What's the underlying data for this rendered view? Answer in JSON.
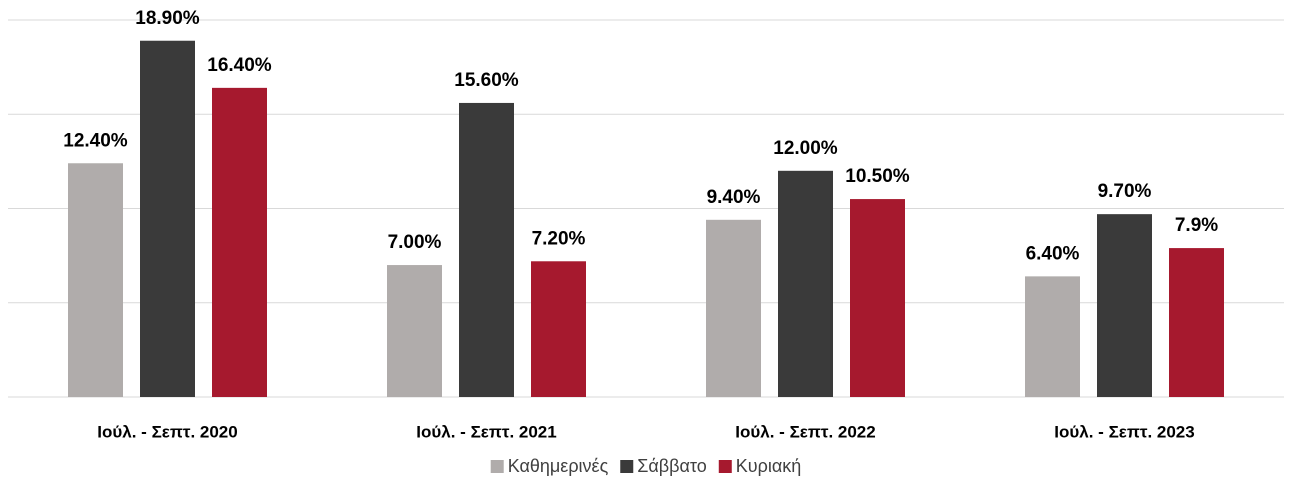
{
  "chart_data": {
    "type": "bar",
    "categories": [
      "Ιούλ. - Σεπτ. 2020",
      "Ιούλ. - Σεπτ. 2021",
      "Ιούλ. - Σεπτ. 2022",
      "Ιούλ. - Σεπτ. 2023"
    ],
    "series": [
      {
        "name": "Καθημερινές",
        "color": "#b0acab",
        "values": [
          12.4,
          7.0,
          9.4,
          6.4
        ],
        "value_labels": [
          "12.40%",
          "7.00%",
          "9.40%",
          "6.40%"
        ]
      },
      {
        "name": "Σάββατο",
        "color": "#3a3a3a",
        "values": [
          18.9,
          15.6,
          12.0,
          9.7
        ],
        "value_labels": [
          "18.90%",
          "15.60%",
          "12.00%",
          "9.70%"
        ]
      },
      {
        "name": "Κυριακή",
        "color": "#a6192e",
        "values": [
          16.4,
          7.2,
          10.5,
          7.9
        ],
        "value_labels": [
          "16.40%",
          "7.20%",
          "10.50%",
          "7.9%"
        ]
      }
    ],
    "ylim": [
      0,
      20
    ],
    "yticks": [
      0,
      5,
      10,
      15,
      20
    ],
    "grid": true,
    "legend": "bottom"
  }
}
